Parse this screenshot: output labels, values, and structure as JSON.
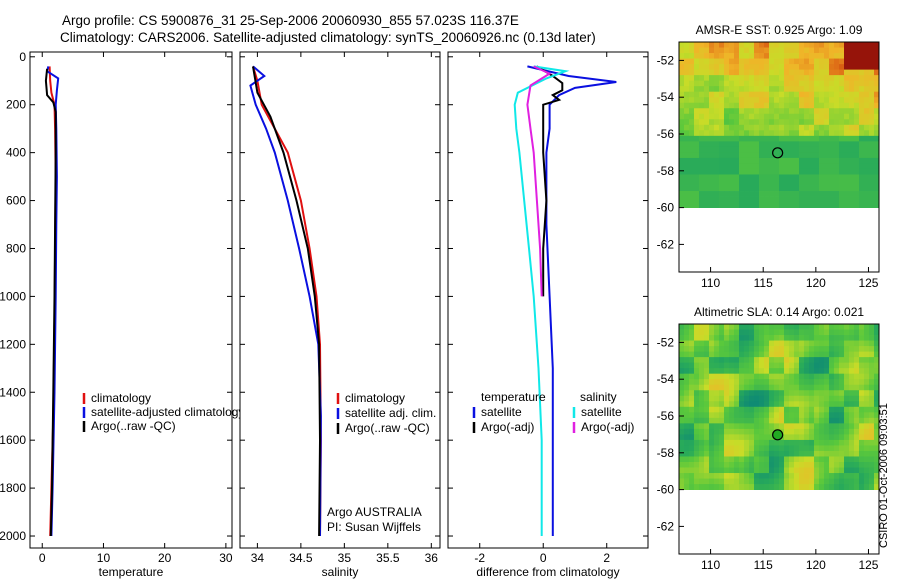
{
  "header": {
    "line1": "Argo profile: CS 5900876_31 25-Sep-2006 20060930_855 57.023S 116.37E",
    "line2": "Climatology: CARS2006. Satellite-adjusted climatology: synTS_20060926.nc (0.13d later)"
  },
  "credit": "CSIRO 01-Oct-2006 09:03:51",
  "colors": {
    "red": "#e01010",
    "blue": "#0a10e0",
    "black": "#000000",
    "cyan": "#10e8e8",
    "magenta": "#e020e0"
  },
  "chart_data": [
    {
      "id": "temperature",
      "type": "line",
      "xlabel": "temperature",
      "ylabel": "",
      "xlim": [
        -2,
        31
      ],
      "ylim": [
        2050,
        -20
      ],
      "xticks": [
        0,
        10,
        20,
        30
      ],
      "yticks": [
        0,
        200,
        400,
        600,
        800,
        1000,
        1200,
        1400,
        1600,
        1800,
        2000
      ],
      "legend": {
        "position": "center-right",
        "entries": [
          "climatology",
          "satellite-adjusted climatology",
          "Argo(..raw -QC)"
        ]
      },
      "series": [
        {
          "name": "climatology",
          "color": "red",
          "points": [
            [
              1.2,
              40
            ],
            [
              1.3,
              100
            ],
            [
              1.5,
              150
            ],
            [
              2.0,
              200
            ],
            [
              2.1,
              300
            ],
            [
              2.2,
              500
            ],
            [
              2.1,
              800
            ],
            [
              2.0,
              1100
            ],
            [
              1.8,
              1500
            ],
            [
              1.5,
              1800
            ],
            [
              1.3,
              2000
            ]
          ]
        },
        {
          "name": "satellite-adjusted climatology",
          "color": "blue",
          "points": [
            [
              1.0,
              40
            ],
            [
              0.8,
              60
            ],
            [
              2.6,
              90
            ],
            [
              2.4,
              140
            ],
            [
              2.2,
              200
            ],
            [
              2.3,
              300
            ],
            [
              2.4,
              500
            ],
            [
              2.3,
              700
            ],
            [
              2.2,
              1000
            ],
            [
              2.0,
              1400
            ],
            [
              1.7,
              1800
            ],
            [
              1.5,
              2000
            ]
          ]
        },
        {
          "name": "Argo(..raw -QC)",
          "color": "black",
          "points": [
            [
              0.8,
              50
            ],
            [
              0.6,
              100
            ],
            [
              0.8,
              160
            ],
            [
              1.8,
              190
            ],
            [
              2.2,
              230
            ],
            [
              2.2,
              400
            ],
            [
              2.1,
              700
            ],
            [
              2.0,
              1000
            ],
            [
              1.8,
              1400
            ],
            [
              1.6,
              1800
            ],
            [
              1.4,
              2000
            ]
          ]
        }
      ]
    },
    {
      "id": "salinity",
      "type": "line",
      "xlabel": "salinity",
      "ylabel": "",
      "xlim": [
        33.8,
        36.1
      ],
      "ylim": [
        2050,
        -20
      ],
      "xticks": [
        34,
        34.5,
        35,
        35.5,
        36
      ],
      "xticklabels": [
        "34",
        "34.5",
        "35",
        "35.5",
        "36"
      ],
      "legend": {
        "position": "center-right",
        "entries": [
          "climatology",
          "satellite adj. clim.",
          "Argo(..raw -QC)"
        ]
      },
      "annotation": [
        "Argo AUSTRALIA",
        "PI: Susan Wijffels"
      ],
      "series": [
        {
          "name": "climatology",
          "color": "red",
          "points": [
            [
              33.95,
              40
            ],
            [
              34.0,
              100
            ],
            [
              34.05,
              200
            ],
            [
              34.2,
              300
            ],
            [
              34.35,
              400
            ],
            [
              34.5,
              600
            ],
            [
              34.6,
              800
            ],
            [
              34.68,
              1000
            ],
            [
              34.72,
              1200
            ],
            [
              34.73,
              1600
            ],
            [
              34.72,
              2000
            ]
          ]
        },
        {
          "name": "satellite adj. clim.",
          "color": "blue",
          "points": [
            [
              33.95,
              40
            ],
            [
              34.08,
              80
            ],
            [
              33.92,
              120
            ],
            [
              33.98,
              200
            ],
            [
              34.1,
              300
            ],
            [
              34.2,
              400
            ],
            [
              34.35,
              600
            ],
            [
              34.48,
              800
            ],
            [
              34.6,
              1000
            ],
            [
              34.7,
              1200
            ],
            [
              34.73,
              1500
            ],
            [
              34.72,
              2000
            ]
          ]
        },
        {
          "name": "Argo(..raw -QC)",
          "color": "black",
          "points": [
            [
              33.95,
              40
            ],
            [
              34.0,
              150
            ],
            [
              34.15,
              250
            ],
            [
              34.3,
              400
            ],
            [
              34.45,
              600
            ],
            [
              34.58,
              800
            ],
            [
              34.66,
              1000
            ],
            [
              34.71,
              1200
            ],
            [
              34.72,
              1600
            ],
            [
              34.71,
              2000
            ]
          ]
        }
      ]
    },
    {
      "id": "difference",
      "type": "line",
      "xlabel": "difference from climatology",
      "ylabel": "",
      "xlim": [
        -3,
        3.3
      ],
      "ylim": [
        2050,
        -20
      ],
      "xticks": [
        -2,
        0,
        2
      ],
      "legend": {
        "position": "center",
        "headers": [
          "temperature",
          "salinity"
        ],
        "entries": [
          "satellite",
          "Argo(-adj)",
          "satellite",
          "Argo(-adj)"
        ]
      },
      "series": [
        {
          "name": "temperature satellite",
          "color": "blue",
          "points": [
            [
              -0.5,
              40
            ],
            [
              0.8,
              80
            ],
            [
              2.3,
              105
            ],
            [
              1.0,
              130
            ],
            [
              0.5,
              160
            ],
            [
              0.2,
              200
            ],
            [
              0.2,
              300
            ],
            [
              0.1,
              400
            ],
            [
              0.1,
              700
            ],
            [
              0.2,
              1000
            ],
            [
              0.3,
              1300
            ],
            [
              0.3,
              1600
            ],
            [
              0.3,
              2000
            ]
          ]
        },
        {
          "name": "temperature Argo(-adj)",
          "color": "black",
          "points": [
            [
              -0.2,
              40
            ],
            [
              0.3,
              80
            ],
            [
              0.6,
              110
            ],
            [
              0.6,
              140
            ],
            [
              0.3,
              160
            ],
            [
              0.5,
              180
            ],
            [
              0.0,
              200
            ],
            [
              0.0,
              400
            ],
            [
              0.1,
              600
            ],
            [
              0.0,
              800
            ],
            [
              0.0,
              1000
            ]
          ]
        },
        {
          "name": "salinity satellite",
          "color": "cyan",
          "points": [
            [
              -0.3,
              40
            ],
            [
              0.7,
              60
            ],
            [
              0.1,
              90
            ],
            [
              -0.8,
              150
            ],
            [
              -0.9,
              200
            ],
            [
              -0.85,
              300
            ],
            [
              -0.75,
              400
            ],
            [
              -0.6,
              600
            ],
            [
              -0.45,
              800
            ],
            [
              -0.3,
              1000
            ],
            [
              -0.15,
              1300
            ],
            [
              -0.05,
              1600
            ],
            [
              -0.05,
              2000
            ]
          ]
        },
        {
          "name": "salinity Argo(-adj)",
          "color": "magenta",
          "points": [
            [
              -0.3,
              40
            ],
            [
              0.2,
              70
            ],
            [
              -0.4,
              120
            ],
            [
              -0.5,
              200
            ],
            [
              -0.4,
              300
            ],
            [
              -0.3,
              400
            ],
            [
              -0.2,
              600
            ],
            [
              -0.1,
              800
            ],
            [
              -0.05,
              1000
            ]
          ]
        }
      ]
    },
    {
      "id": "sst-map",
      "type": "heatmap",
      "title": "AMSR-E SST: 0.925 Argo: 1.09",
      "xlim": [
        107,
        126
      ],
      "ylim": [
        -63.5,
        -51
      ],
      "xticks": [
        110,
        115,
        120,
        125
      ],
      "yticks": [
        -52,
        -54,
        -56,
        -58,
        -60,
        -62
      ],
      "data_extent": {
        "xmin": 107,
        "xmax": 126,
        "ymin": -60,
        "ymax": -51
      },
      "marker": {
        "lon": 116.37,
        "lat": -57.023,
        "filled": false
      }
    },
    {
      "id": "sla-map",
      "type": "heatmap",
      "title": "Altimetric SLA: 0.14 Argo: 0.021",
      "xlim": [
        107,
        126
      ],
      "ylim": [
        -63.5,
        -51
      ],
      "xticks": [
        110,
        115,
        120,
        125
      ],
      "yticks": [
        -52,
        -54,
        -56,
        -58,
        -60,
        -62
      ],
      "data_extent": {
        "xmin": 107,
        "xmax": 126,
        "ymin": -60,
        "ymax": -51
      },
      "marker": {
        "lon": 116.37,
        "lat": -57.023,
        "filled": true
      }
    }
  ]
}
